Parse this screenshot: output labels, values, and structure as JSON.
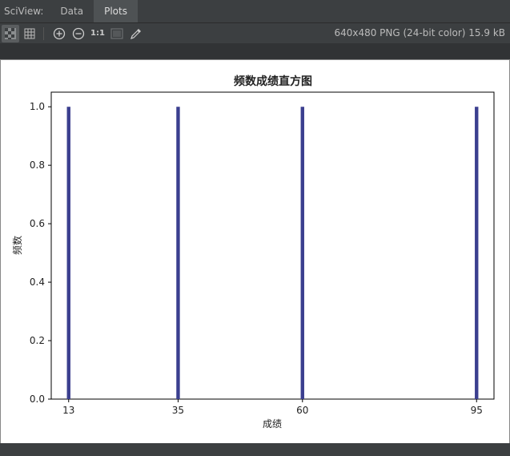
{
  "sciview": {
    "label": "SciView:",
    "tabs": [
      {
        "label": "Data"
      },
      {
        "label": "Plots"
      }
    ]
  },
  "toolbar": {
    "actual_size_label": "1:1",
    "image_info": "640x480 PNG (24-bit color) 15.9 kB"
  },
  "chart_data": {
    "type": "bar",
    "title": "频数成绩直方图",
    "xlabel": "成绩",
    "ylabel": "频数",
    "categories": [
      "13",
      "35",
      "60",
      "95"
    ],
    "values": [
      1.0,
      1.0,
      1.0,
      1.0
    ],
    "x": [
      13,
      35,
      60,
      95
    ],
    "xlim": [
      9.5,
      98.5
    ],
    "ylim": [
      0,
      1.05
    ],
    "yticks": [
      "0.0",
      "0.2",
      "0.4",
      "0.6",
      "0.8",
      "1.0"
    ],
    "ytick_values": [
      0.0,
      0.2,
      0.4,
      0.6,
      0.8,
      1.0
    ],
    "bar_color": "#3b3f8f",
    "grid": false
  }
}
